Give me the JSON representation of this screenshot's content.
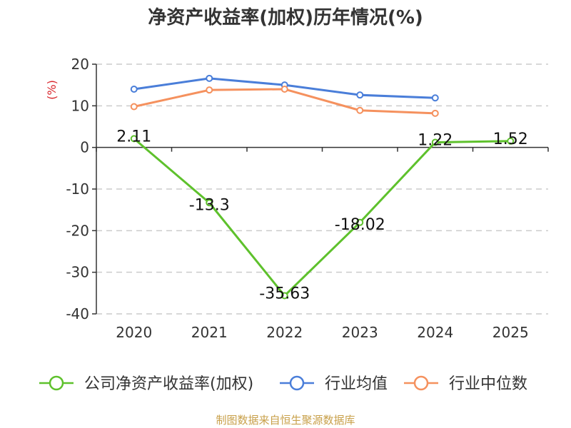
{
  "chart_data": {
    "type": "line",
    "title": "净资产收益率(加权)历年情况(%)",
    "ylabel": "(%)",
    "xlabel": "",
    "categories": [
      "2020",
      "2021",
      "2022",
      "2023",
      "2024",
      "2025"
    ],
    "yticks": [
      "20",
      "10",
      "0",
      "-10",
      "-20",
      "-30",
      "-40"
    ],
    "ylim": [
      -40,
      20
    ],
    "grid": true,
    "legend_position": "bottom",
    "series": [
      {
        "name": "公司净资产收益率(加权)",
        "color": "#5ec12c",
        "values": [
          2.11,
          -13.3,
          -35.63,
          -18.02,
          1.22,
          1.52
        ],
        "labels": [
          "2.11",
          "-13.3",
          "-35.63",
          "-18.02",
          "1.22",
          "1.52"
        ]
      },
      {
        "name": "行业均值",
        "color": "#4a7ed9",
        "values": [
          14.0,
          16.6,
          15.0,
          12.6,
          11.9,
          null
        ]
      },
      {
        "name": "行业中位数",
        "color": "#f5915e",
        "values": [
          9.8,
          13.8,
          14.0,
          8.9,
          8.2,
          null
        ]
      }
    ]
  },
  "source_text": "制图数据来自恒生聚源数据库",
  "colors": {
    "axis": "#333333",
    "grid": "#cccccc",
    "ylabel": "#d9262c",
    "source": "#c8a04a"
  }
}
